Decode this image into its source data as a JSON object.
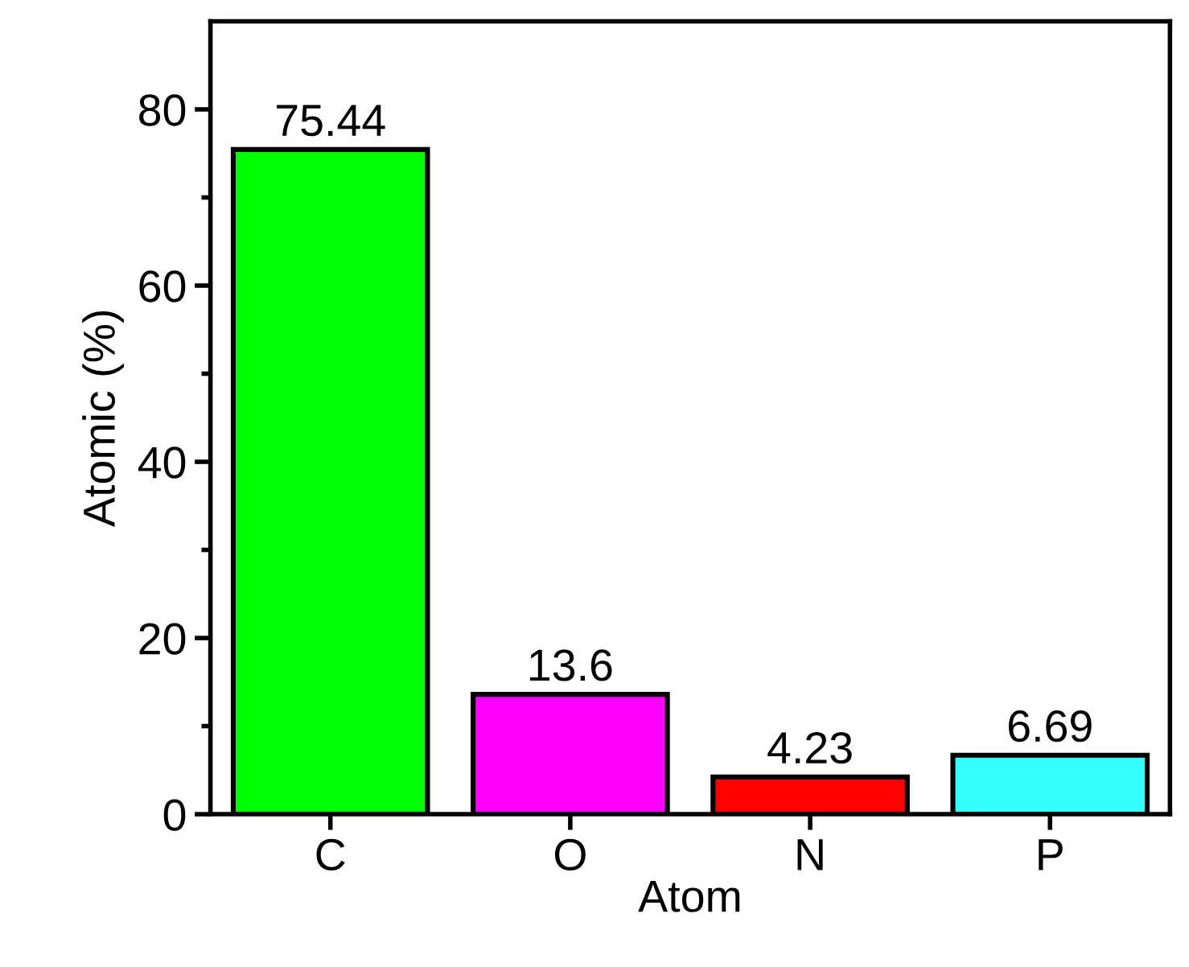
{
  "chart_data": {
    "type": "bar",
    "xlabel": "Atom",
    "ylabel": "Atomic (%)",
    "categories": [
      "C",
      "O",
      "N",
      "P"
    ],
    "values": [
      75.44,
      13.6,
      4.23,
      6.69
    ],
    "colors": [
      "#00ff00",
      "#ff00ff",
      "#ff0000",
      "#33ffff"
    ],
    "ylim": [
      0,
      90
    ],
    "yticks": [
      0,
      20,
      40,
      60,
      80
    ],
    "data_labels": true,
    "grid": false,
    "legend": false
  }
}
